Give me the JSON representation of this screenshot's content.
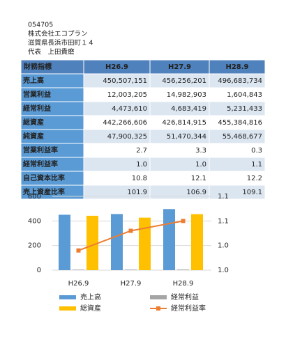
{
  "header": [
    "054705",
    "株式会社エコプラン",
    "滋賀県長浜市田町１４",
    "代表　上田貴磨"
  ],
  "table": {
    "columns": [
      "財務指標",
      "H26.9",
      "H27.9",
      "H28.9"
    ],
    "rows": [
      [
        "売上高",
        "450,507,151",
        "456,256,201",
        "496,683,734"
      ],
      [
        "営業利益",
        "12,003,205",
        "14,982,903",
        "1,604,843"
      ],
      [
        "経常利益",
        "4,473,610",
        "4,683,419",
        "5,231,433"
      ],
      [
        "総資産",
        "442,266,606",
        "426,814,915",
        "455,384,816"
      ],
      [
        "純資産",
        "47,900,325",
        "51,470,344",
        "55,468,677"
      ],
      [
        "営業利益率",
        "2.7",
        "3.3",
        "0.3"
      ],
      [
        "経常利益率",
        "1.0",
        "1.0",
        "1.1"
      ],
      [
        "自己資本比率",
        "10.8",
        "12.1",
        "12.2"
      ],
      [
        "売上資産比率",
        "101.9",
        "106.9",
        "109.1"
      ]
    ]
  },
  "chart_data": {
    "type": "bar",
    "categories": [
      "H26.9",
      "H27.9",
      "H28.9"
    ],
    "ylim": [
      0,
      600
    ],
    "yticks": [
      0,
      200,
      400,
      600
    ],
    "y2lim": [
      0.95,
      1.1
    ],
    "y2ticks": [
      {
        "value": 0.95,
        "label": "1.0"
      },
      {
        "value": 1.0,
        "label": "1.0"
      },
      {
        "value": 1.05,
        "label": "1.1"
      },
      {
        "value": 1.1,
        "label": "1.1"
      }
    ],
    "grid": true,
    "series": [
      {
        "name": "売上高",
        "color": "#5b9bd5",
        "values": [
          450.5,
          456.3,
          496.7
        ]
      },
      {
        "name": "経常利益",
        "color": "#a5a5a5",
        "values": [
          4.5,
          4.7,
          5.2
        ]
      },
      {
        "name": "総資産",
        "color": "#ffc000",
        "values": [
          442.3,
          426.8,
          455.4
        ]
      },
      {
        "name": "経常利益率",
        "color": "#ed7d31",
        "type": "line",
        "axis": "y2",
        "values": [
          0.99,
          1.03,
          1.05
        ]
      }
    ]
  }
}
